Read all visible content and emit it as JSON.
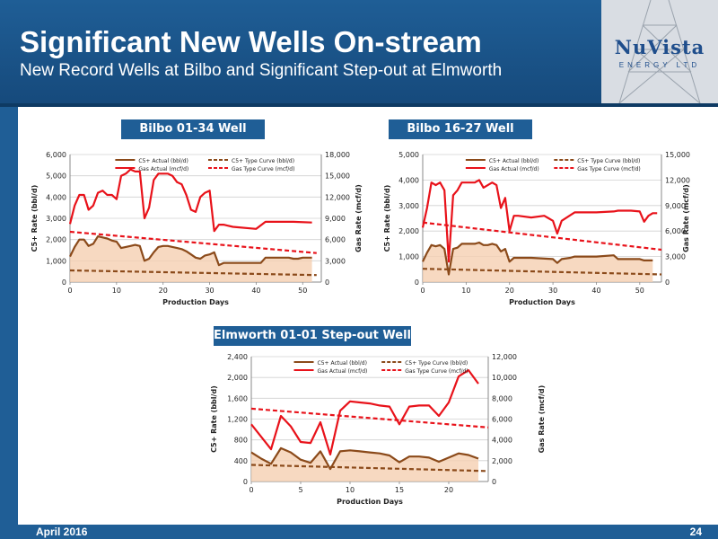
{
  "slide": {
    "title": "Significant New Wells On-stream",
    "subtitle": "New Record Wells at Bilbo and Significant Step-out at Elmworth",
    "logo_text": "NuVista",
    "logo_subtext": "ENERGY LTD",
    "footer_date": "April 2016",
    "page_number": "24"
  },
  "colors": {
    "header_blue": "#1f5e96",
    "c5_line": "#8b4a1a",
    "c5_fill": "#f5cfb2",
    "gas_line": "#e8121a",
    "c5_type": "#8b4a1a",
    "gas_type": "#e8121a"
  },
  "chart_data": [
    {
      "type": "line",
      "title": "Bilbo 01-34 Well",
      "xlabel": "Production Days",
      "ylabel": "C5+ Rate (bbl/d)",
      "y2label": "Gas Rate (mcf/d)",
      "xlim": [
        0,
        54
      ],
      "ylim": [
        0,
        6000
      ],
      "y2lim": [
        0,
        18000
      ],
      "xticks": [
        "0",
        "10",
        "20",
        "30",
        "40",
        "50"
      ],
      "yticks": [
        "0",
        "1,000",
        "2,000",
        "3,000",
        "4,000",
        "5,000",
        "6,000"
      ],
      "y2ticks": [
        "0",
        "3,000",
        "6,000",
        "9,000",
        "12,000",
        "15,000",
        "18,000"
      ],
      "legend": [
        "C5+ Actual (bbl/d)",
        "C5+ Type Curve (bbl/d)",
        "Gas Actual (mcf/d)",
        "Gas Type Curve (mcf/d)"
      ],
      "legend_position": "top",
      "grid": true,
      "series": [
        {
          "name": "C5+ Actual (bbl/d)",
          "axis": "y",
          "x": [
            0,
            1,
            2,
            3,
            4,
            5,
            6,
            7,
            8,
            9,
            10,
            11,
            12,
            13,
            14,
            15,
            16,
            17,
            18,
            19,
            20,
            21,
            22,
            23,
            24,
            25,
            26,
            27,
            28,
            29,
            30,
            31,
            32,
            33,
            34,
            35,
            40,
            41,
            42,
            43,
            44,
            45,
            46,
            47,
            48,
            49,
            50,
            51,
            52
          ],
          "values": [
            1200,
            1650,
            2000,
            2000,
            1700,
            1800,
            2150,
            2100,
            2050,
            1950,
            1900,
            1600,
            1650,
            1700,
            1750,
            1700,
            1000,
            1100,
            1400,
            1650,
            1700,
            1700,
            1650,
            1600,
            1550,
            1450,
            1300,
            1150,
            1100,
            1250,
            1300,
            1400,
            800,
            900,
            900,
            900,
            900,
            900,
            1150,
            1150,
            1150,
            1150,
            1150,
            1150,
            1100,
            1100,
            1150,
            1150,
            1150
          ]
        },
        {
          "name": "C5+ Type Curve (bbl/d)",
          "axis": "y",
          "x": [
            0,
            53
          ],
          "values": [
            550,
            330
          ]
        },
        {
          "name": "Gas Actual (mcf/d)",
          "axis": "y2",
          "x": [
            0,
            1,
            2,
            3,
            4,
            5,
            6,
            7,
            8,
            9,
            10,
            11,
            12,
            13,
            14,
            15,
            16,
            17,
            18,
            19,
            20,
            21,
            22,
            23,
            24,
            25,
            26,
            27,
            28,
            29,
            30,
            31,
            32,
            33,
            35,
            40,
            42,
            46,
            47,
            48,
            52
          ],
          "values": [
            8200,
            10800,
            12300,
            12300,
            10200,
            10800,
            12600,
            12900,
            12300,
            12300,
            11700,
            15000,
            15300,
            15900,
            15600,
            15600,
            9000,
            10500,
            14400,
            15300,
            15300,
            15300,
            15000,
            14100,
            13800,
            12300,
            10200,
            9900,
            12000,
            12600,
            12900,
            7200,
            8100,
            8100,
            7800,
            7500,
            8500,
            8500,
            8500,
            8500,
            8400
          ]
        },
        {
          "name": "Gas Type Curve (mcf/d)",
          "axis": "y2",
          "x": [
            0,
            53
          ],
          "values": [
            7100,
            4100
          ]
        }
      ]
    },
    {
      "type": "line",
      "title": "Bilbo 16-27 Well",
      "xlabel": "Production Days",
      "ylabel": "C5+ Rate (bbl/d)",
      "y2label": "Gas Rate (mcf/d)",
      "xlim": [
        0,
        55
      ],
      "ylim": [
        0,
        5000
      ],
      "y2lim": [
        0,
        15000
      ],
      "xticks": [
        "0",
        "10",
        "20",
        "30",
        "40",
        "50"
      ],
      "yticks": [
        "0",
        "1,000",
        "2,000",
        "3,000",
        "4,000",
        "5,000"
      ],
      "y2ticks": [
        "0",
        "3,000",
        "6,000",
        "9,000",
        "12,000",
        "15,000"
      ],
      "legend": [
        "C5+ Actual (bbl/d)",
        "C5+ Type Curve (bbl/d)",
        "Gas Actual (mcf/d)",
        "Gas Type Curve (mcf/d)"
      ],
      "legend_position": "top",
      "grid": true,
      "series": [
        {
          "name": "C5+ Actual (bbl/d)",
          "axis": "y",
          "x": [
            0,
            1,
            2,
            3,
            4,
            5,
            6,
            7,
            8,
            9,
            10,
            11,
            12,
            13,
            14,
            15,
            16,
            17,
            18,
            19,
            20,
            21,
            25,
            30,
            31,
            32,
            34,
            35,
            40,
            44,
            45,
            46,
            50,
            51,
            52,
            53
          ],
          "values": [
            800,
            1150,
            1450,
            1400,
            1450,
            1300,
            300,
            1300,
            1350,
            1500,
            1500,
            1500,
            1500,
            1550,
            1450,
            1450,
            1500,
            1450,
            1200,
            1300,
            800,
            950,
            950,
            900,
            750,
            900,
            950,
            1000,
            1000,
            1050,
            900,
            900,
            900,
            850,
            850,
            850
          ]
        },
        {
          "name": "C5+ Type Curve (bbl/d)",
          "axis": "y",
          "x": [
            0,
            55
          ],
          "values": [
            520,
            300
          ]
        },
        {
          "name": "Gas Actual (mcf/d)",
          "axis": "y2",
          "x": [
            0,
            1,
            2,
            3,
            4,
            5,
            6,
            7,
            8,
            9,
            10,
            11,
            12,
            13,
            14,
            15,
            16,
            17,
            18,
            19,
            20,
            21,
            22,
            25,
            28,
            29,
            30,
            31,
            32,
            35,
            40,
            44,
            45,
            46,
            48,
            50,
            51,
            52,
            53,
            54
          ],
          "values": [
            6400,
            8700,
            11700,
            11400,
            11700,
            10800,
            2400,
            10200,
            10800,
            11700,
            11700,
            11700,
            11700,
            12000,
            11100,
            11400,
            11700,
            11400,
            8700,
            9900,
            6000,
            7800,
            7800,
            7600,
            7800,
            7500,
            7200,
            5700,
            7200,
            8200,
            8200,
            8300,
            8400,
            8400,
            8400,
            8300,
            7100,
            7800,
            8100,
            8100
          ]
        },
        {
          "name": "Gas Type Curve (mcf/d)",
          "axis": "y2",
          "x": [
            0,
            55
          ],
          "values": [
            7000,
            3800
          ]
        }
      ]
    },
    {
      "type": "line",
      "title": "Elmworth 01-01 Step-out Well",
      "xlabel": "Production Days",
      "ylabel": "C5+ Rate (bbl/d)",
      "y2label": "Gas Rate (mcf/d)",
      "xlim": [
        0,
        24
      ],
      "ylim": [
        0,
        2400
      ],
      "y2lim": [
        0,
        12000
      ],
      "xticks": [
        "0",
        "5",
        "10",
        "15",
        "20"
      ],
      "yticks": [
        "0",
        "400",
        "800",
        "1,200",
        "1,600",
        "2,000",
        "2,400"
      ],
      "y2ticks": [
        "0",
        "2,000",
        "4,000",
        "6,000",
        "8,000",
        "10,000",
        "12,000"
      ],
      "legend": [
        "C5+ Actual (bbl/d)",
        "C5+ Type Curve (bbl/d)",
        "Gas Actual (mcf/d)",
        "Gas Type Curve (mcf/d)"
      ],
      "legend_position": "top",
      "grid": true,
      "series": [
        {
          "name": "C5+ Actual (bbl/d)",
          "axis": "y",
          "x": [
            0,
            1,
            2,
            3,
            4,
            5,
            6,
            7,
            8,
            9,
            10,
            11,
            12,
            13,
            14,
            15,
            16,
            17,
            18,
            19,
            20,
            21,
            22,
            23
          ],
          "values": [
            560,
            440,
            340,
            640,
            560,
            420,
            360,
            580,
            240,
            580,
            600,
            580,
            560,
            540,
            500,
            370,
            480,
            480,
            460,
            380,
            460,
            540,
            510,
            440
          ]
        },
        {
          "name": "C5+ Type Curve (bbl/d)",
          "axis": "y",
          "x": [
            0,
            24
          ],
          "values": [
            320,
            200
          ]
        },
        {
          "name": "Gas Actual (mcf/d)",
          "axis": "y2",
          "x": [
            0,
            1,
            2,
            3,
            4,
            5,
            6,
            7,
            8,
            9,
            10,
            11,
            12,
            13,
            14,
            15,
            16,
            17,
            18,
            19,
            20,
            21,
            22,
            23
          ],
          "values": [
            5500,
            4300,
            3100,
            6300,
            5300,
            3800,
            3700,
            5700,
            2600,
            6800,
            7700,
            7600,
            7500,
            7300,
            7200,
            5500,
            7200,
            7300,
            7300,
            6300,
            7600,
            10100,
            10700,
            9400
          ]
        },
        {
          "name": "Gas Type Curve (mcf/d)",
          "axis": "y2",
          "x": [
            0,
            24
          ],
          "values": [
            7000,
            5200
          ]
        }
      ]
    }
  ]
}
